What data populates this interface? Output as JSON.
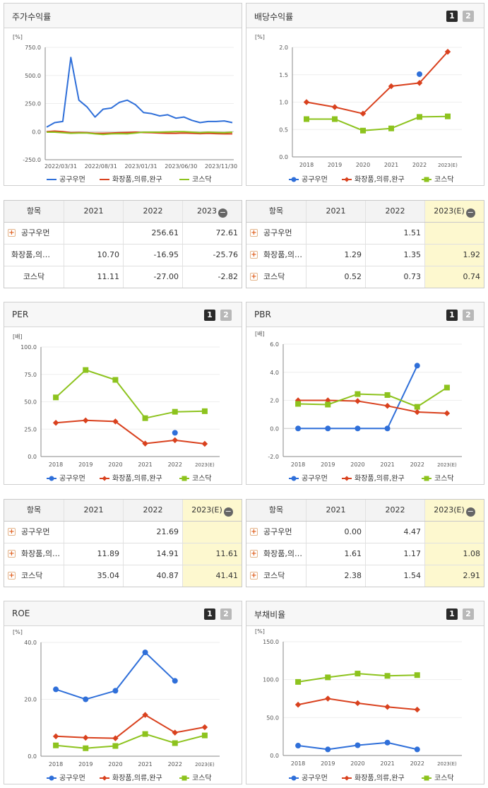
{
  "colors": {
    "series1": "#2f6fd9",
    "series2": "#d9411e",
    "series3": "#8dc31e",
    "axis": "#888888",
    "grid": "#eeeeee",
    "highlight": "#fdf8cf"
  },
  "legend": [
    "공구우먼",
    "화장품,의류,완구",
    "코스닥"
  ],
  "tab_buttons": [
    "1",
    "2"
  ],
  "panels": {
    "stock_return": {
      "title": "주가수익률"
    },
    "dividend": {
      "title": "배당수익률"
    },
    "per": {
      "title": "PER"
    },
    "pbr": {
      "title": "PBR"
    },
    "roe": {
      "title": "ROE"
    },
    "debt": {
      "title": "부채비율"
    }
  },
  "tables": {
    "stock_return": {
      "head": [
        "항목",
        "2021",
        "2022",
        "2023"
      ],
      "rows": [
        {
          "label": "공구우먼",
          "v": [
            "",
            "256.61",
            "72.61"
          ],
          "plus": true
        },
        {
          "label": "화장품,의…",
          "v": [
            "10.70",
            "-16.95",
            "-25.76"
          ],
          "plus": false
        },
        {
          "label": "코스닥",
          "v": [
            "11.11",
            "-27.00",
            "-2.82"
          ],
          "plus": false
        }
      ]
    },
    "dividend": {
      "head": [
        "항목",
        "2021",
        "2022",
        "2023(E)"
      ],
      "rows": [
        {
          "label": "공구우먼",
          "v": [
            "",
            "1.51",
            ""
          ],
          "plus": true
        },
        {
          "label": "화장품,의…",
          "v": [
            "1.29",
            "1.35",
            "1.92"
          ],
          "plus": true
        },
        {
          "label": "코스닥",
          "v": [
            "0.52",
            "0.73",
            "0.74"
          ],
          "plus": true
        }
      ]
    },
    "per": {
      "head": [
        "항목",
        "2021",
        "2022",
        "2023(E)"
      ],
      "rows": [
        {
          "label": "공구우먼",
          "v": [
            "",
            "21.69",
            ""
          ],
          "plus": true
        },
        {
          "label": "화장품,의…",
          "v": [
            "11.89",
            "14.91",
            "11.61"
          ],
          "plus": true
        },
        {
          "label": "코스닥",
          "v": [
            "35.04",
            "40.87",
            "41.41"
          ],
          "plus": true
        }
      ]
    },
    "pbr": {
      "head": [
        "항목",
        "2021",
        "2022",
        "2023(E)"
      ],
      "rows": [
        {
          "label": "공구우먼",
          "v": [
            "0.00",
            "4.47",
            ""
          ],
          "plus": true
        },
        {
          "label": "화장품,의…",
          "v": [
            "1.61",
            "1.17",
            "1.08"
          ],
          "plus": true
        },
        {
          "label": "코스닥",
          "v": [
            "2.38",
            "1.54",
            "2.91"
          ],
          "plus": true
        }
      ]
    }
  },
  "chart_data": [
    {
      "id": "stock_return",
      "type": "line",
      "title": "주가수익률",
      "yunit": "[%]",
      "ylim": [
        -250,
        750
      ],
      "yticks": [
        "750.0",
        "500.0",
        "250.0",
        "0.0",
        "-250.0"
      ],
      "xticks": [
        "2022/03/31",
        "2022/08/31",
        "2023/01/31",
        "2023/06/30",
        "2023/11/30"
      ],
      "series": [
        {
          "name": "공구우먼",
          "values": [
            40,
            80,
            90,
            660,
            280,
            220,
            130,
            200,
            210,
            260,
            280,
            240,
            170,
            160,
            140,
            150,
            120,
            130,
            100,
            80,
            90,
            90,
            95,
            80
          ]
        },
        {
          "name": "화장품,의류,완구",
          "values": [
            0,
            5,
            0,
            -10,
            -8,
            -10,
            -15,
            -15,
            -12,
            -10,
            -8,
            -5,
            -8,
            -10,
            -12,
            -15,
            -15,
            -12,
            -15,
            -18,
            -15,
            -18,
            -20,
            -20
          ]
        },
        {
          "name": "코스닥",
          "values": [
            -5,
            -5,
            -10,
            -15,
            -12,
            -12,
            -20,
            -25,
            -20,
            -18,
            -20,
            -12,
            -5,
            -5,
            -5,
            -2,
            0,
            0,
            -5,
            -10,
            -5,
            -8,
            -10,
            -5
          ]
        }
      ]
    },
    {
      "id": "dividend",
      "type": "line",
      "title": "배당수익률",
      "yunit": "[%]",
      "ylim": [
        0,
        2.0
      ],
      "yticks": [
        "2.0",
        "1.5",
        "1.0",
        "0.5",
        "0.0"
      ],
      "categories": [
        "2018",
        "2019",
        "2020",
        "2021",
        "2022",
        "2023(E)"
      ],
      "series": [
        {
          "name": "공구우먼",
          "values": [
            null,
            null,
            null,
            null,
            1.51,
            null
          ]
        },
        {
          "name": "화장품,의류,완구",
          "values": [
            1.0,
            0.91,
            0.79,
            1.29,
            1.35,
            1.92
          ]
        },
        {
          "name": "코스닥",
          "values": [
            0.69,
            0.69,
            0.48,
            0.52,
            0.73,
            0.74
          ]
        }
      ]
    },
    {
      "id": "per",
      "type": "line",
      "title": "PER",
      "yunit": "[배]",
      "ylim": [
        0,
        100
      ],
      "yticks": [
        "100.0",
        "75.0",
        "50.0",
        "25.0",
        "0.0"
      ],
      "categories": [
        "2018",
        "2019",
        "2020",
        "2021",
        "2022",
        "2023(E)"
      ],
      "series": [
        {
          "name": "공구우먼",
          "values": [
            null,
            null,
            null,
            null,
            21.69,
            null
          ]
        },
        {
          "name": "화장품,의류,완구",
          "values": [
            30.8,
            33.0,
            32.0,
            11.89,
            14.91,
            11.61
          ]
        },
        {
          "name": "코스닥",
          "values": [
            54.0,
            79.0,
            70.0,
            35.04,
            40.87,
            41.41
          ]
        }
      ]
    },
    {
      "id": "pbr",
      "type": "line",
      "title": "PBR",
      "yunit": "[배]",
      "ylim": [
        -2,
        6
      ],
      "yticks": [
        "6.0",
        "4.0",
        "2.0",
        "0.0",
        "-2.0"
      ],
      "categories": [
        "2018",
        "2019",
        "2020",
        "2021",
        "2022",
        "2023(E)"
      ],
      "series": [
        {
          "name": "공구우먼",
          "values": [
            0.0,
            0.0,
            0.0,
            0.0,
            4.47,
            null
          ]
        },
        {
          "name": "화장품,의류,완구",
          "values": [
            2.0,
            2.0,
            1.95,
            1.61,
            1.17,
            1.08
          ]
        },
        {
          "name": "코스닥",
          "values": [
            1.75,
            1.7,
            2.45,
            2.38,
            1.54,
            2.91
          ]
        }
      ]
    },
    {
      "id": "roe",
      "type": "line",
      "title": "ROE",
      "yunit": "[%]",
      "ylim": [
        0,
        40
      ],
      "yticks": [
        "40.0",
        "20.0",
        "0.0"
      ],
      "categories": [
        "2018",
        "2019",
        "2020",
        "2021",
        "2022",
        "2023(E)"
      ],
      "series": [
        {
          "name": "공구우먼",
          "values": [
            23.5,
            20.0,
            23.0,
            36.5,
            26.5,
            null
          ]
        },
        {
          "name": "화장품,의류,완구",
          "values": [
            7.0,
            6.5,
            6.3,
            14.5,
            8.3,
            10.2
          ]
        },
        {
          "name": "코스닥",
          "values": [
            3.8,
            2.8,
            3.6,
            7.8,
            4.6,
            7.3
          ]
        }
      ]
    },
    {
      "id": "debt",
      "type": "line",
      "title": "부채비율",
      "yunit": "[%]",
      "ylim": [
        0,
        150
      ],
      "yticks": [
        "150.0",
        "100.0",
        "50.0",
        "0.0"
      ],
      "categories": [
        "2018",
        "2019",
        "2020",
        "2021",
        "2022",
        "2023(E)"
      ],
      "series": [
        {
          "name": "공구우먼",
          "values": [
            13.0,
            8.0,
            13.5,
            17.0,
            8.0,
            null
          ]
        },
        {
          "name": "화장품,의류,완구",
          "values": [
            67.0,
            75.0,
            69.0,
            64.0,
            60.5,
            null
          ]
        },
        {
          "name": "코스닥",
          "values": [
            97.0,
            103.0,
            108.0,
            105.0,
            106.0,
            null
          ]
        }
      ]
    }
  ]
}
